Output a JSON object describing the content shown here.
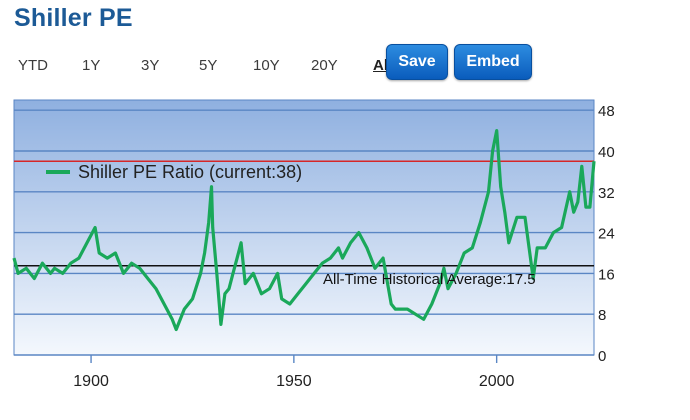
{
  "header": {
    "title": "Shiller PE"
  },
  "range_tabs": [
    {
      "label": "YTD"
    },
    {
      "label": "1Y"
    },
    {
      "label": "3Y"
    },
    {
      "label": "5Y"
    },
    {
      "label": "10Y"
    },
    {
      "label": "20Y"
    },
    {
      "label": "All"
    }
  ],
  "toolbar": {
    "save_label": "Save",
    "embed_label": "Embed"
  },
  "colors": {
    "series": "#1aa85a",
    "current_line": "#d62728",
    "average_line": "#111111",
    "grid": "#5a86c4",
    "plot_top": "#8fb0e0",
    "plot_bottom": "#f4f8fd"
  },
  "chart_data": {
    "type": "line",
    "title": "",
    "xlabel": "",
    "ylabel": "",
    "xlim": [
      1881,
      2024
    ],
    "ylim": [
      0,
      50
    ],
    "x_ticks": [
      1900,
      1950,
      2000
    ],
    "y_ticks": [
      0,
      8,
      16,
      24,
      32,
      40,
      48
    ],
    "y_axis_side": "right",
    "grid": true,
    "legend": {
      "placement": "top-left",
      "label": "Shiller PE Ratio (current:38)"
    },
    "reference_lines": [
      {
        "value": 38,
        "color": "#d62728",
        "role": "current"
      },
      {
        "value": 17.5,
        "color": "#111111",
        "role": "average",
        "label": "All-Time Historical Average:17.5"
      }
    ],
    "series": [
      {
        "name": "Shiller PE Ratio",
        "x": [
          1881,
          1882,
          1884,
          1886,
          1888,
          1890,
          1891,
          1893,
          1895,
          1897,
          1899,
          1901,
          1902,
          1904,
          1906,
          1908,
          1910,
          1912,
          1914,
          1916,
          1918,
          1920,
          1921,
          1923,
          1925,
          1927,
          1928,
          1929,
          1929.7,
          1930,
          1931,
          1932,
          1933,
          1934,
          1935,
          1936,
          1937,
          1938,
          1940,
          1942,
          1944,
          1946,
          1947,
          1949,
          1951,
          1953,
          1955,
          1957,
          1959,
          1961,
          1962,
          1964,
          1966,
          1968,
          1970,
          1972,
          1974,
          1975,
          1978,
          1980,
          1982,
          1984,
          1986,
          1987,
          1988,
          1990,
          1992,
          1994,
          1996,
          1998,
          1999,
          2000,
          2001,
          2002,
          2003,
          2005,
          2007,
          2008,
          2009,
          2010,
          2012,
          2014,
          2016,
          2018,
          2019,
          2020,
          2021,
          2022,
          2023,
          2024
        ],
        "y": [
          19,
          16,
          17,
          15,
          18,
          16,
          17,
          16,
          18,
          19,
          22,
          25,
          20,
          19,
          20,
          16,
          18,
          17,
          15,
          13,
          10,
          7,
          5,
          9,
          11,
          16,
          20,
          26,
          33,
          25,
          16,
          6,
          12,
          13,
          16,
          19,
          22,
          14,
          16,
          12,
          13,
          16,
          11,
          10,
          12,
          14,
          16,
          18,
          19,
          21,
          19,
          22,
          24,
          21,
          17,
          19,
          10,
          9,
          9,
          8,
          7,
          10,
          14,
          17,
          13,
          16,
          20,
          21,
          26,
          32,
          40,
          44,
          33,
          28,
          22,
          27,
          27,
          21,
          15,
          21,
          21,
          24,
          25,
          32,
          28,
          30,
          37,
          29,
          29,
          38
        ]
      }
    ]
  }
}
